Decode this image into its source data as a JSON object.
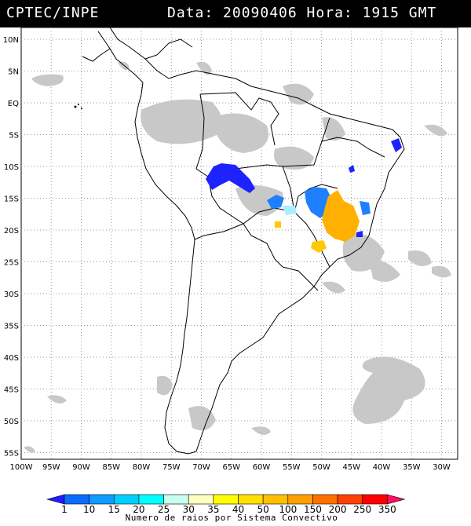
{
  "header": {
    "source": "CPTEC/INPE",
    "datetime": "Data: 20090406 Hora: 1915 GMT"
  },
  "map": {
    "lat_labels": [
      "10N",
      "5N",
      "EQ",
      "5S",
      "10S",
      "15S",
      "20S",
      "25S",
      "30S",
      "35S",
      "40S",
      "45S",
      "50S",
      "55S"
    ],
    "lon_labels": [
      "100W",
      "95W",
      "90W",
      "85W",
      "80W",
      "75W",
      "70W",
      "65W",
      "60W",
      "55W",
      "50W",
      "45W",
      "40W",
      "35W",
      "30W"
    ],
    "cloud_color": "#c8c8c8",
    "coastline_color": "#000000"
  },
  "systems": [
    {
      "region": "Rondonia",
      "class": "1-10",
      "color": "#1e22ff"
    },
    {
      "region": "Mato Grosso",
      "class": "15-20",
      "color": "#1e7fff"
    },
    {
      "region": "Goias / Minas Gerais",
      "class": "100-150",
      "color": "#ffb000"
    },
    {
      "region": "Parana",
      "class": "50-100",
      "color": "#ffc800"
    },
    {
      "region": "Bahia coast",
      "class": "1-10",
      "color": "#1e22ff"
    }
  ],
  "colorbar": {
    "labels": [
      "1",
      "10",
      "15",
      "20",
      "25",
      "30",
      "35",
      "40",
      "50",
      "100",
      "150",
      "200",
      "250",
      "350"
    ],
    "colors": [
      "#1e1eff",
      "#0a6cff",
      "#109cff",
      "#00d0ff",
      "#00ffff",
      "#c8fff0",
      "#ffffc0",
      "#ffff00",
      "#ffe000",
      "#ffc000",
      "#ffa000",
      "#ff7000",
      "#ff4000",
      "#ff0000",
      "#ff1060"
    ],
    "caption": "Numero de raios por Sistema Convectivo"
  }
}
